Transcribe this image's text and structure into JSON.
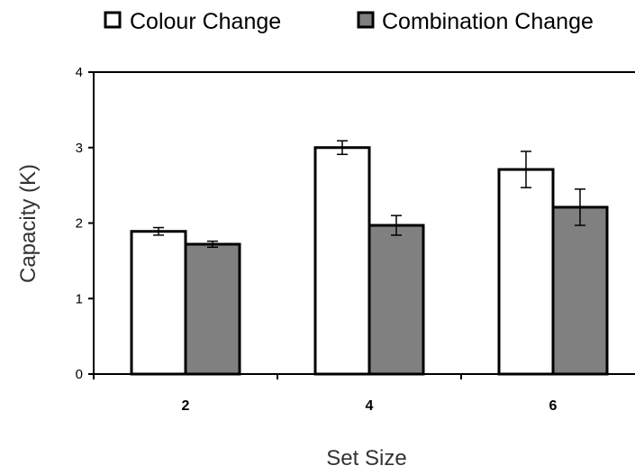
{
  "chart_data": {
    "type": "bar",
    "categories": [
      "2",
      "4",
      "6"
    ],
    "series": [
      {
        "name": "Colour Change",
        "values": [
          1.89,
          3.0,
          2.71
        ],
        "errors": [
          0.05,
          0.09,
          0.24
        ],
        "color": "#ffffff"
      },
      {
        "name": "Combination Change",
        "values": [
          1.72,
          1.97,
          2.21
        ],
        "errors": [
          0.04,
          0.13,
          0.24
        ],
        "color": "#808080"
      }
    ],
    "xlabel": "Set Size",
    "ylabel": "Capacity (K)",
    "ylim": [
      0,
      4
    ],
    "yticks": [
      0,
      1,
      2,
      3,
      4
    ],
    "grid": false,
    "legend_position": "top"
  }
}
